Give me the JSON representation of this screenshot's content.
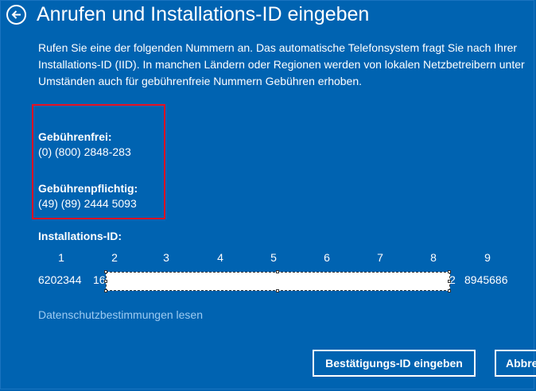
{
  "header": {
    "title": "Anrufen und Installations-ID eingeben"
  },
  "description": {
    "lines": [
      "Rufen Sie eine der folgenden Nummern an. Das automatische Telefonsystem fragt Sie nach Ihrer",
      "Installations-ID (IID). In manchen Ländern oder Regionen werden von lokalen Netzbetreibern unter",
      "Umständen auch für gebührenfreie Nummern Gebühren erhoben."
    ]
  },
  "phones": {
    "tollfree_label": "Gebührenfrei:",
    "tollfree_number": "(0) (800) 2848-283",
    "toll_label": "Gebührenpflichtig:",
    "toll_number": "(49) (89) 2444 5093"
  },
  "installation_id": {
    "label": "Installations-ID:",
    "columns": [
      "1",
      "2",
      "3",
      "4",
      "5",
      "6",
      "7",
      "8",
      "9"
    ],
    "group1": "6202344",
    "group2_partial": "16",
    "group8_partial": "2",
    "group9": "8945686"
  },
  "privacy_link": "Datenschutzbestimmungen lesen",
  "buttons": {
    "confirm": "Bestätigungs-ID eingeben",
    "cancel": "Abbrechen"
  },
  "colors": {
    "background": "#0063b1",
    "highlight": "#e81123",
    "link": "#9ecbf2"
  }
}
